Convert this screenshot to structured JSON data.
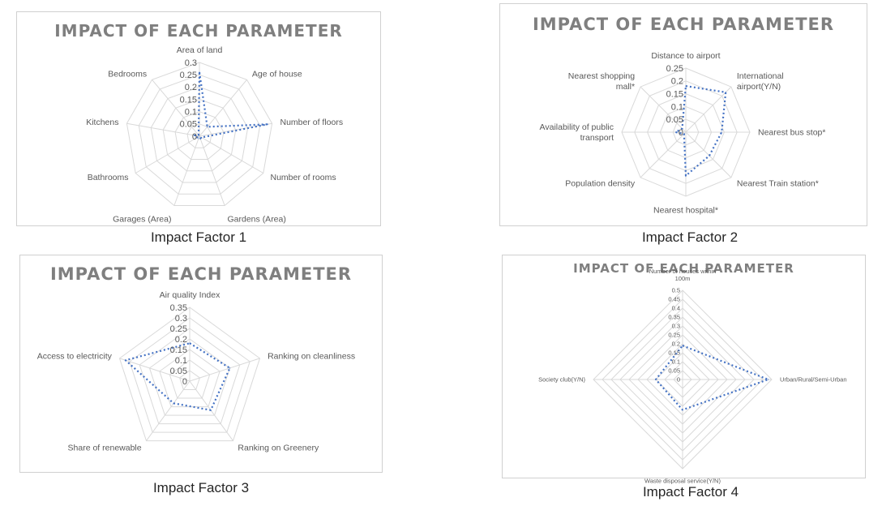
{
  "chart_data": [
    {
      "type": "radar",
      "title": "IMPACT OF EACH PARAMETER",
      "caption": "Impact Factor 1",
      "categories": [
        [
          "Area of land"
        ],
        [
          "Age of house"
        ],
        [
          "Number of floors"
        ],
        [
          "Number of rooms"
        ],
        [
          "Gardens (Area)"
        ],
        [
          "Garages (Area)"
        ],
        [
          "Bathrooms"
        ],
        [
          "Kitchens"
        ],
        [
          "Bedrooms"
        ]
      ],
      "values": [
        0.26,
        0.05,
        0.28,
        0.01,
        0.01,
        0.01,
        0.01,
        0.02,
        0.005
      ],
      "ticks": [
        "0",
        "0.05",
        "0.1",
        "0.15",
        "0.2",
        "0.25",
        "0.3"
      ],
      "rmax": 0.3,
      "series_color": "#4472c4",
      "grid": true
    },
    {
      "type": "radar",
      "title": "IMPACT OF EACH PARAMETER",
      "caption": "Impact Factor 2",
      "categories": [
        [
          "Distance to airport"
        ],
        [
          "International",
          "airport(Y/N)"
        ],
        [
          "Nearest bus stop*"
        ],
        [
          "Nearest Train station*"
        ],
        [
          "Nearest hospital*"
        ],
        [
          "Population density"
        ],
        [
          "Availability of public",
          "transport"
        ],
        [
          "Nearest shopping",
          "mall*"
        ]
      ],
      "values": [
        0.18,
        0.22,
        0.14,
        0.13,
        0.17,
        0.01,
        0.04,
        0.02
      ],
      "ticks": [
        "0",
        "0.05",
        "0.1",
        "0.15",
        "0.2",
        "0.25"
      ],
      "rmax": 0.25,
      "series_color": "#4472c4",
      "grid": true
    },
    {
      "type": "radar",
      "title": "IMPACT OF EACH PARAMETER",
      "caption": "Impact Factor 3",
      "categories": [
        [
          "Air quality Index"
        ],
        [
          "Ranking on cleanliness"
        ],
        [
          "Ranking on Greenery"
        ],
        [
          "Share of renewable"
        ],
        [
          "Access to electricity"
        ]
      ],
      "values": [
        0.18,
        0.2,
        0.17,
        0.13,
        0.32
      ],
      "ticks": [
        "0",
        "0.05",
        "0.1",
        "0.15",
        "0.2",
        "0.25",
        "0.3",
        "0.35"
      ],
      "rmax": 0.35,
      "series_color": "#4472c4",
      "grid": true
    },
    {
      "type": "radar",
      "title": "IMPACT OF EACH PARAMETER",
      "caption": "Impact Factor 4",
      "categories": [
        [
          "Number of houses within",
          "100m"
        ],
        [
          "Urban/Rural/Semi-Urban"
        ],
        [
          "Waste disposal service(Y/N)"
        ],
        [
          "Society club(Y/N)"
        ]
      ],
      "values": [
        0.19,
        0.48,
        0.17,
        0.15
      ],
      "ticks": [
        "0",
        "0.05",
        "0.1",
        "0.15",
        "0.2",
        "0.25",
        "0.3",
        "0.35",
        "0.4",
        "0.45",
        "0.5"
      ],
      "rmax": 0.5,
      "series_color": "#4472c4",
      "grid": true
    }
  ]
}
